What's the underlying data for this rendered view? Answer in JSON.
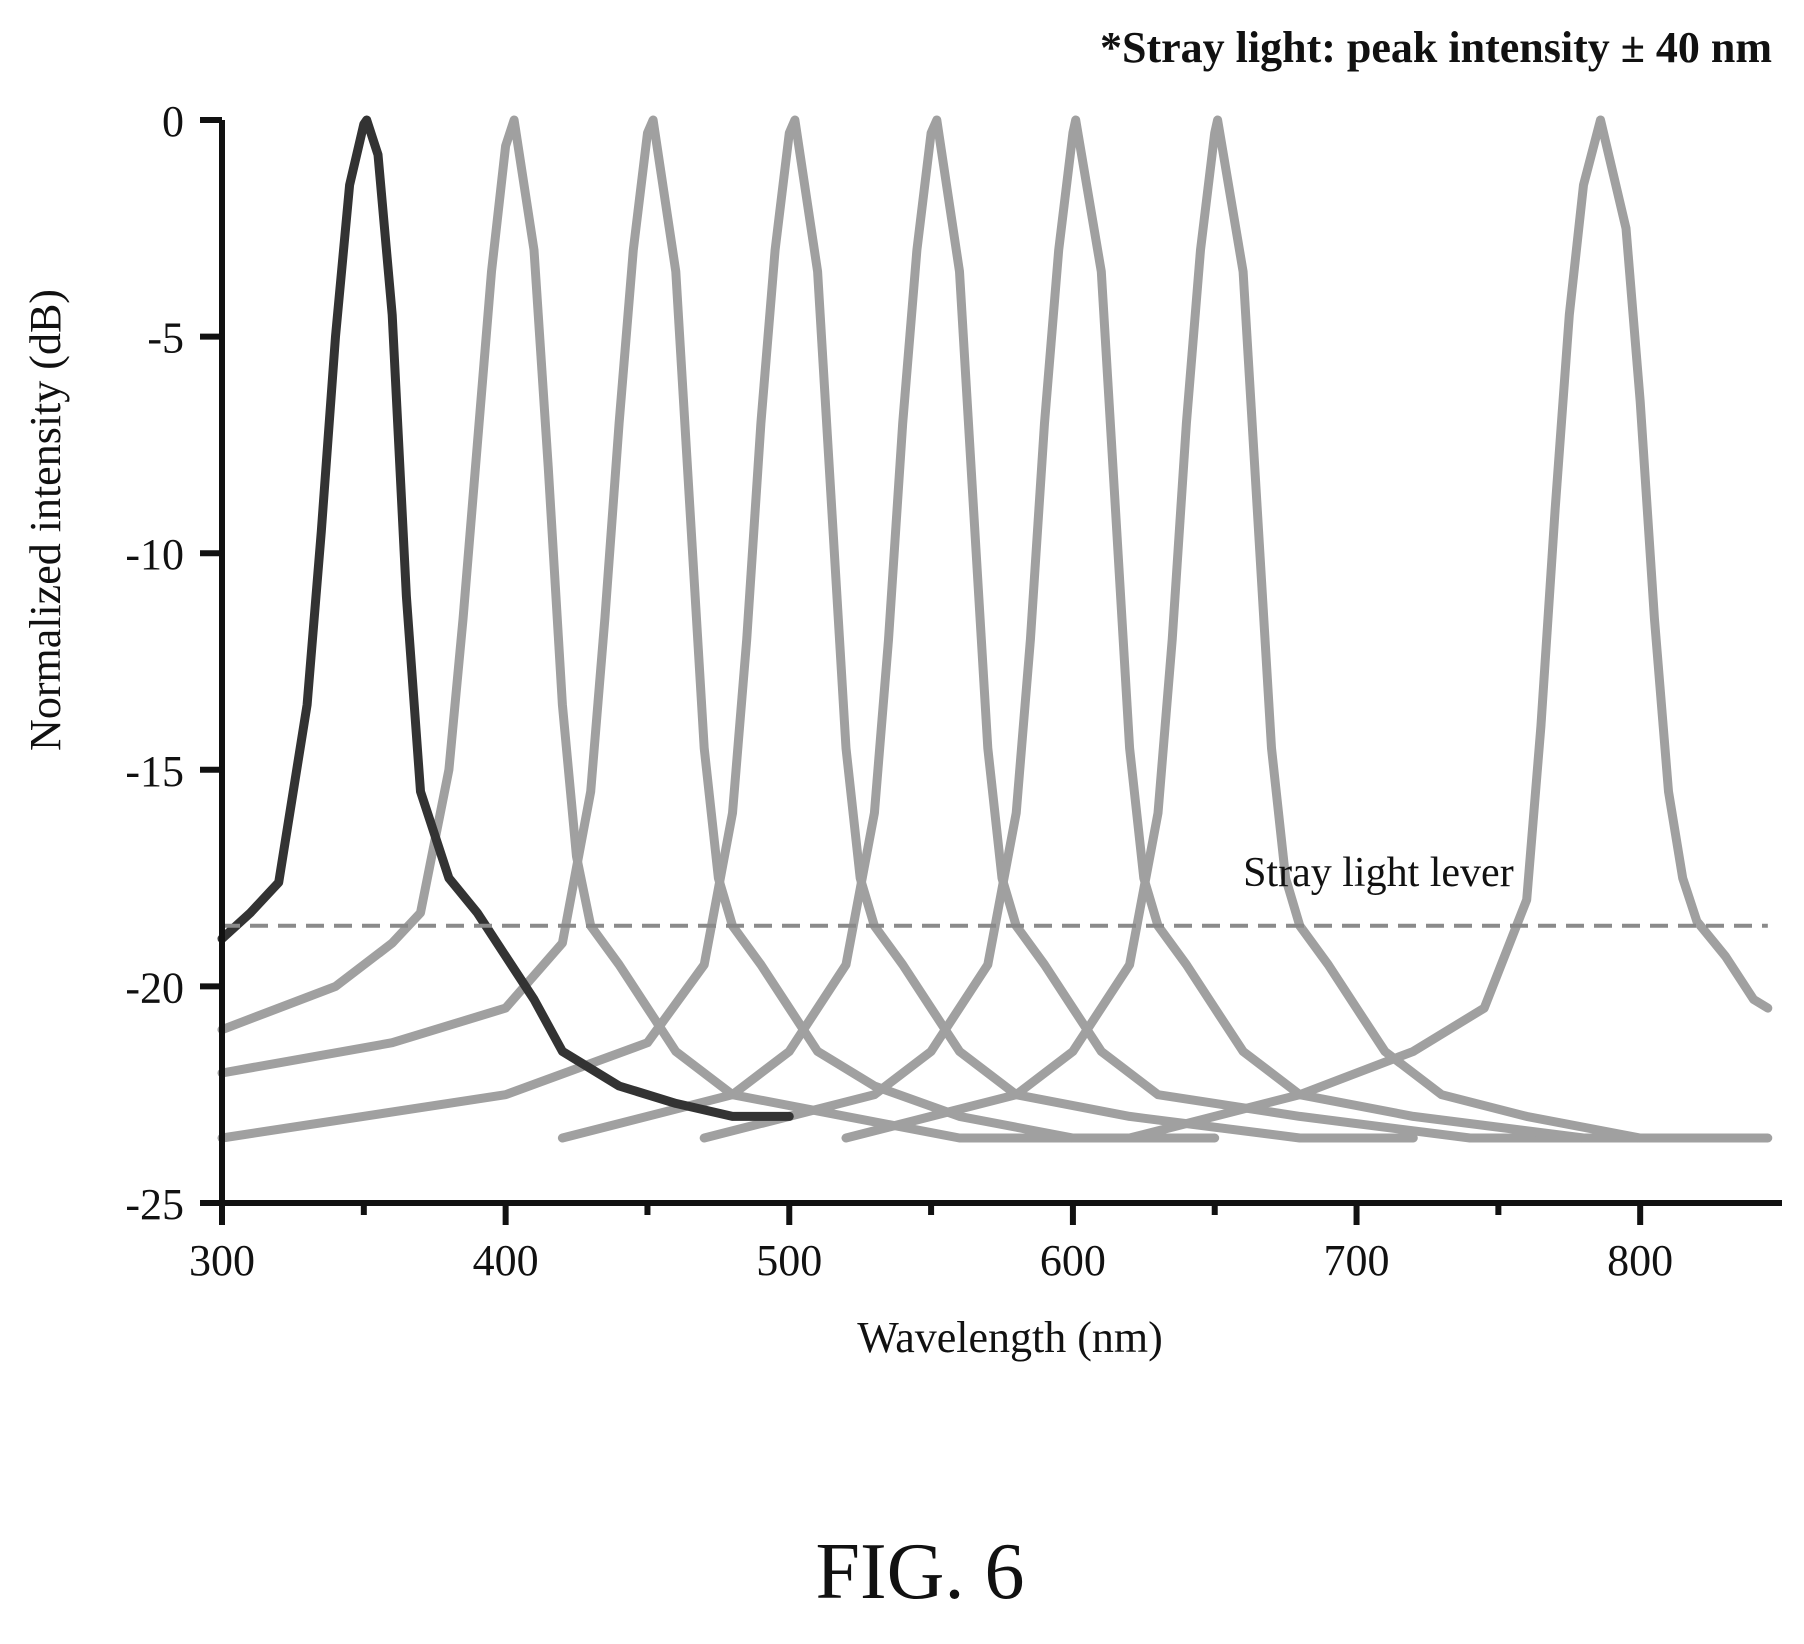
{
  "figure": {
    "label": "FIG. 6",
    "note": "*Stray light: peak intensity ± 40 nm"
  },
  "chart_data": {
    "type": "line",
    "title": "",
    "xlabel": "Wavelength (nm)",
    "ylabel": "Normalized intensity (dB)",
    "xlim": [
      300,
      850
    ],
    "ylim": [
      -25,
      0
    ],
    "x_ticks": [
      300,
      400,
      500,
      600,
      700,
      800
    ],
    "x_ticks_minor": [
      350,
      450,
      550,
      650,
      750
    ],
    "y_ticks": [
      0,
      -5,
      -10,
      -15,
      -20,
      -25
    ],
    "grid": false,
    "legend": "none",
    "stray_light_level": {
      "label": "Stray light lever",
      "value": -18.6,
      "style": "dashed",
      "color": "#8a8a8a"
    },
    "series": [
      {
        "color": "#333333",
        "peak_wavelength": 351,
        "x": [
          300,
          310,
          320,
          330,
          335,
          340,
          345,
          350,
          351,
          355,
          360,
          365,
          370,
          380,
          390,
          400,
          410,
          420,
          440,
          460,
          480,
          500
        ],
        "y": [
          -18.9,
          -18.3,
          -17.6,
          -13.5,
          -9.5,
          -5.0,
          -1.5,
          -0.1,
          0,
          -0.8,
          -4.5,
          -11.0,
          -15.5,
          -17.5,
          -18.3,
          -19.3,
          -20.3,
          -21.5,
          -22.3,
          -22.7,
          -23.0,
          -23.0
        ]
      },
      {
        "color": "#a0a0a0",
        "peak_wavelength": 403,
        "x": [
          300,
          340,
          360,
          370,
          380,
          385,
          390,
          395,
          400,
          403,
          410,
          415,
          420,
          425,
          430,
          440,
          450,
          460,
          480,
          520,
          560,
          600
        ],
        "y": [
          -21.0,
          -20.0,
          -19.0,
          -18.3,
          -15.0,
          -11.5,
          -7.5,
          -3.5,
          -0.6,
          0,
          -3.0,
          -8.0,
          -13.5,
          -17.0,
          -18.6,
          -19.5,
          -20.5,
          -21.5,
          -22.5,
          -23.0,
          -23.5,
          -23.5
        ]
      },
      {
        "color": "#a0a0a0",
        "peak_wavelength": 452,
        "x": [
          300,
          360,
          400,
          420,
          430,
          435,
          440,
          445,
          450,
          452,
          460,
          465,
          470,
          475,
          480,
          490,
          500,
          510,
          530,
          560,
          600,
          650
        ],
        "y": [
          -22.0,
          -21.3,
          -20.5,
          -19.0,
          -15.5,
          -11.5,
          -7.0,
          -3.0,
          -0.3,
          0,
          -3.5,
          -9.0,
          -14.5,
          -17.5,
          -18.6,
          -19.5,
          -20.5,
          -21.5,
          -22.3,
          -23.0,
          -23.5,
          -23.5
        ]
      },
      {
        "color": "#a0a0a0",
        "peak_wavelength": 502,
        "x": [
          300,
          400,
          450,
          470,
          480,
          485,
          490,
          495,
          500,
          502,
          510,
          515,
          520,
          525,
          530,
          540,
          550,
          560,
          580,
          620,
          680,
          720
        ],
        "y": [
          -23.5,
          -22.5,
          -21.3,
          -19.5,
          -16.0,
          -12.0,
          -7.0,
          -3.0,
          -0.3,
          0,
          -3.5,
          -9.0,
          -14.5,
          -17.5,
          -18.6,
          -19.5,
          -20.5,
          -21.5,
          -22.5,
          -23.0,
          -23.5,
          -23.5
        ]
      },
      {
        "color": "#a0a0a0",
        "peak_wavelength": 552,
        "x": [
          420,
          480,
          500,
          520,
          530,
          535,
          540,
          545,
          550,
          552,
          560,
          565,
          570,
          575,
          580,
          590,
          600,
          610,
          630,
          680,
          740,
          780
        ],
        "y": [
          -23.5,
          -22.5,
          -21.5,
          -19.5,
          -16.0,
          -12.0,
          -7.0,
          -3.0,
          -0.3,
          0,
          -3.5,
          -9.0,
          -14.5,
          -17.5,
          -18.6,
          -19.5,
          -20.5,
          -21.5,
          -22.5,
          -23.0,
          -23.5,
          -23.5
        ]
      },
      {
        "color": "#a0a0a0",
        "peak_wavelength": 601,
        "x": [
          470,
          530,
          550,
          570,
          580,
          585,
          590,
          595,
          600,
          601,
          610,
          615,
          620,
          625,
          630,
          640,
          650,
          660,
          680,
          720,
          780,
          830
        ],
        "y": [
          -23.5,
          -22.5,
          -21.5,
          -19.5,
          -16.0,
          -12.0,
          -7.0,
          -3.0,
          -0.3,
          0,
          -3.5,
          -9.0,
          -14.5,
          -17.5,
          -18.6,
          -19.5,
          -20.5,
          -21.5,
          -22.5,
          -23.0,
          -23.5,
          -23.5
        ]
      },
      {
        "color": "#a0a0a0",
        "peak_wavelength": 651,
        "x": [
          520,
          580,
          600,
          620,
          630,
          635,
          640,
          645,
          650,
          651,
          660,
          665,
          670,
          675,
          680,
          690,
          700,
          710,
          730,
          760,
          800,
          845
        ],
        "y": [
          -23.5,
          -22.5,
          -21.5,
          -19.5,
          -16.0,
          -12.0,
          -7.0,
          -3.0,
          -0.3,
          0,
          -3.5,
          -9.0,
          -14.5,
          -17.5,
          -18.6,
          -19.5,
          -20.5,
          -21.5,
          -22.5,
          -23.0,
          -23.5,
          -23.5
        ]
      },
      {
        "color": "#a0a0a0",
        "peak_wavelength": 786,
        "x": [
          620,
          680,
          720,
          745,
          760,
          765,
          770,
          775,
          780,
          786,
          795,
          800,
          805,
          810,
          815,
          820,
          830,
          840,
          845
        ],
        "y": [
          -23.5,
          -22.5,
          -21.5,
          -20.5,
          -18.0,
          -14.0,
          -9.0,
          -4.5,
          -1.5,
          0,
          -2.5,
          -6.5,
          -11.5,
          -15.5,
          -17.5,
          -18.5,
          -19.3,
          -20.3,
          -20.5
        ]
      }
    ]
  }
}
